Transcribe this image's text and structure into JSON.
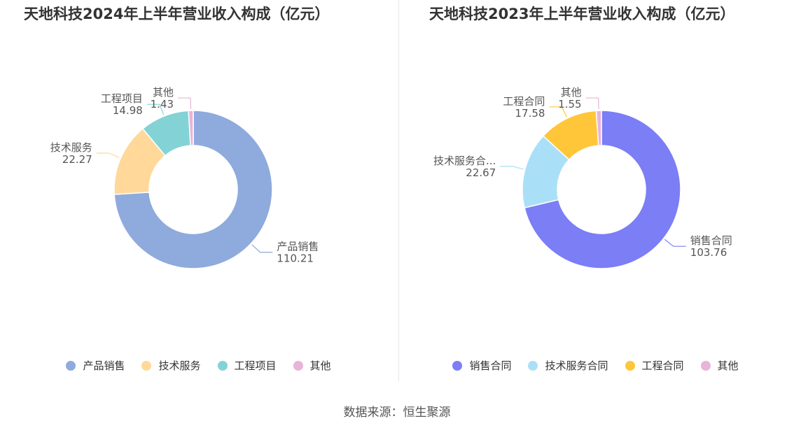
{
  "chart_data": [
    {
      "type": "pie",
      "title": "天地科技2024年上半年营业收入构成（亿元）",
      "categories": [
        "产品销售",
        "技术服务",
        "工程项目",
        "其他"
      ],
      "display_labels": [
        "产品销售",
        "技术服务",
        "工程项目",
        "其他"
      ],
      "values": [
        110.21,
        22.27,
        14.98,
        1.43
      ],
      "value_labels": [
        "110.21",
        "22.27",
        "14.98",
        "1.43"
      ],
      "colors": [
        "#8faadc",
        "#ffd89a",
        "#83d3d6",
        "#e8b4d8"
      ],
      "donut": true
    },
    {
      "type": "pie",
      "title": "天地科技2023年上半年营业收入构成（亿元）",
      "categories": [
        "销售合同",
        "技术服务合同",
        "工程合同",
        "其他"
      ],
      "display_labels": [
        "销售合同",
        "技术服务合...",
        "工程合同",
        "其他"
      ],
      "values": [
        103.76,
        22.67,
        17.58,
        1.55
      ],
      "value_labels": [
        "103.76",
        "22.67",
        "17.58",
        "1.55"
      ],
      "colors": [
        "#7b7ef5",
        "#aadff8",
        "#ffc63a",
        "#e8b4d8"
      ],
      "donut": true
    }
  ],
  "source": "数据来源：恒生聚源"
}
